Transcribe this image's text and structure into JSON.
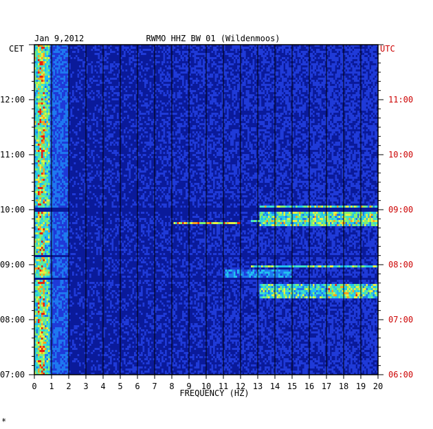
{
  "chart_data": {
    "type": "heatmap",
    "date": "Jan 9,2012",
    "title": "RWMO HHZ BW 01 (Wildenmoos)",
    "xlabel": "FREQUENCY (HZ)",
    "xlim": [
      0,
      20
    ],
    "x_ticks": [
      "0",
      "1",
      "2",
      "3",
      "4",
      "5",
      "6",
      "7",
      "8",
      "9",
      "10",
      "11",
      "12",
      "13",
      "14",
      "15",
      "16",
      "17",
      "18",
      "19",
      "20"
    ],
    "left_axis_label": "CET",
    "right_axis_label": "UTC",
    "left_ticks": [
      "12:00",
      "11:00",
      "10:00",
      "09:00",
      "08:00",
      "07:00"
    ],
    "right_ticks": [
      "11:00",
      "10:00",
      "09:00",
      "08:00",
      "07:00",
      "06:00"
    ],
    "left_time_range": [
      "07:00",
      "13:00"
    ],
    "colors": {
      "background": "#0a1a9a",
      "frame": "#000000",
      "grid": "#000000",
      "utc_text": "#cc0000",
      "cet_text": "#000000"
    },
    "features": [
      {
        "name": "low-frequency energy",
        "freq_range": [
          0,
          1
        ],
        "time_range": [
          "07:00",
          "13:00"
        ]
      },
      {
        "name": "broadband event",
        "freq_range": [
          1.5,
          20
        ],
        "time": "10:00"
      },
      {
        "name": "high-frequency band",
        "freq_range": [
          13,
          20
        ],
        "time_range": [
          "09:45",
          "10:05"
        ]
      },
      {
        "name": "narrow band 8-12Hz",
        "freq_range": [
          8,
          12
        ],
        "time": "09:48"
      },
      {
        "name": "high-frequency band",
        "freq_range": [
          12.5,
          20
        ],
        "time": "09:00"
      },
      {
        "name": "high-frequency energy 17-19Hz",
        "freq_range": [
          13,
          20
        ],
        "time_range": [
          "08:25",
          "08:40"
        ]
      }
    ],
    "footer_mark": "*"
  }
}
